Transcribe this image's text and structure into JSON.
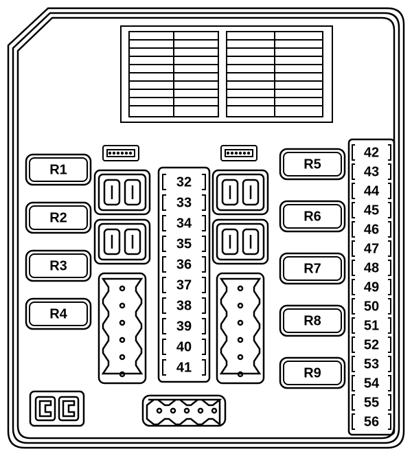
{
  "type": "fuse-box-diagram",
  "stroke": "#000000",
  "background": "#ffffff",
  "relays_left": [
    "R1",
    "R2",
    "R3",
    "R4"
  ],
  "relays_right": [
    "R5",
    "R6",
    "R7",
    "R8",
    "R9"
  ],
  "fuses_center": [
    "32",
    "33",
    "34",
    "35",
    "36",
    "37",
    "38",
    "39",
    "40",
    "41"
  ],
  "fuses_right": [
    "42",
    "43",
    "44",
    "45",
    "46",
    "47",
    "48",
    "49",
    "50",
    "51",
    "52",
    "53",
    "54",
    "55",
    "56"
  ]
}
